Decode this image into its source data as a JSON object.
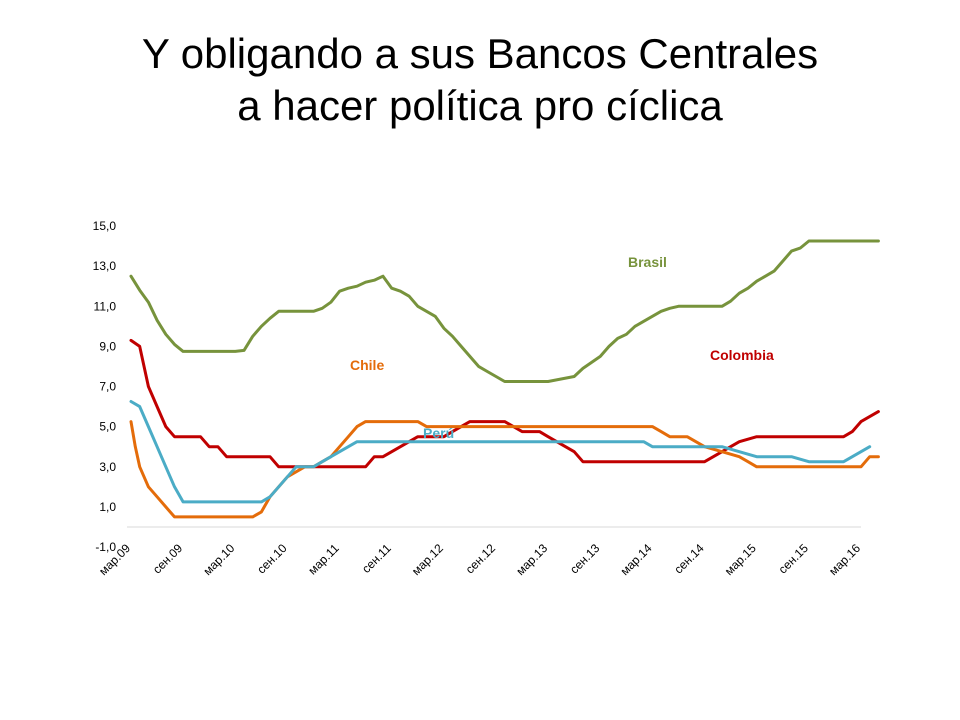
{
  "title": {
    "line1": "Y obligando a sus Bancos Centrales",
    "line2": "a hacer política pro cíclica"
  },
  "chart_data": {
    "type": "line",
    "title": "",
    "xlabel": "",
    "ylabel": "",
    "ylim": [
      -1,
      15
    ],
    "y_ticks": [
      "15,0",
      "13,0",
      "11,0",
      "9,0",
      "7,0",
      "5,0",
      "3,0",
      "1,0",
      "-1,0"
    ],
    "y_tick_values": [
      15,
      13,
      11,
      9,
      7,
      5,
      3,
      1,
      -1
    ],
    "x_ticks": [
      "мар.09",
      "сен.09",
      "мар.10",
      "сен.10",
      "мар.11",
      "сен.11",
      "мар.12",
      "сен.12",
      "мар.13",
      "сен.13",
      "мар.14",
      "сен.14",
      "мар.15",
      "сен.15",
      "мар.16"
    ],
    "x_start": "2009-03",
    "grid": false,
    "legend": "inline labels",
    "series": [
      {
        "name": "Brasil",
        "color": "#77933C",
        "x": [
          0,
          1,
          2,
          3,
          4,
          5,
          6,
          8,
          12,
          13,
          14,
          15,
          16,
          17,
          18,
          19,
          20,
          21,
          22,
          23,
          24,
          25,
          26,
          27,
          28,
          29,
          30,
          31,
          32,
          33,
          34,
          35,
          36,
          37,
          38,
          39,
          40,
          41,
          42,
          43,
          44,
          45,
          46,
          48,
          51,
          52,
          53,
          54,
          55,
          56,
          57,
          58,
          59,
          60,
          61,
          62,
          63,
          64,
          65,
          66,
          67,
          68,
          69,
          70,
          71,
          72,
          73,
          74,
          75,
          76,
          77,
          78,
          79,
          80,
          82,
          84,
          85,
          86
        ],
        "y": [
          12.5,
          11.8,
          11.2,
          10.3,
          9.6,
          9.1,
          8.75,
          8.75,
          8.75,
          8.8,
          9.5,
          10.0,
          10.4,
          10.75,
          10.75,
          10.75,
          10.75,
          10.75,
          10.9,
          11.2,
          11.75,
          11.9,
          12.0,
          12.2,
          12.3,
          12.5,
          11.9,
          11.75,
          11.5,
          11.0,
          10.75,
          10.5,
          9.9,
          9.5,
          9.0,
          8.5,
          8.0,
          7.75,
          7.5,
          7.25,
          7.25,
          7.25,
          7.25,
          7.25,
          7.5,
          7.9,
          8.2,
          8.5,
          9.0,
          9.4,
          9.6,
          10.0,
          10.25,
          10.5,
          10.75,
          10.9,
          11.0,
          11.0,
          11.0,
          11.0,
          11.0,
          11.0,
          11.25,
          11.65,
          11.9,
          12.25,
          12.5,
          12.75,
          13.25,
          13.75,
          13.9,
          14.25,
          14.25,
          14.25,
          14.25,
          14.25,
          14.25,
          14.25
        ]
      },
      {
        "name": "Colombia",
        "color": "#C00000",
        "x": [
          0,
          1,
          2,
          3,
          4,
          5,
          6,
          8,
          9,
          10,
          11,
          12,
          13,
          14,
          15,
          16,
          17,
          18,
          19,
          20,
          21,
          22,
          23,
          24,
          25,
          26,
          27,
          28,
          29,
          30,
          32,
          33,
          34,
          35,
          36,
          37,
          38,
          39,
          40,
          41,
          42,
          43,
          44,
          45,
          46,
          47,
          48,
          49,
          50,
          51,
          52,
          53,
          54,
          56,
          58,
          60,
          62,
          64,
          65,
          66,
          67,
          68,
          69,
          70,
          72,
          74,
          76,
          78,
          79,
          80,
          81,
          82,
          83,
          84,
          85,
          86
        ],
        "y": [
          9.3,
          9.0,
          7.0,
          6.0,
          5.0,
          4.5,
          4.5,
          4.5,
          4.0,
          4.0,
          3.5,
          3.5,
          3.5,
          3.5,
          3.5,
          3.5,
          3.0,
          3.0,
          3.0,
          3.0,
          3.0,
          3.0,
          3.0,
          3.0,
          3.0,
          3.0,
          3.0,
          3.5,
          3.5,
          3.75,
          4.25,
          4.5,
          4.5,
          4.5,
          4.5,
          4.75,
          5.0,
          5.25,
          5.25,
          5.25,
          5.25,
          5.25,
          5.0,
          4.75,
          4.75,
          4.75,
          4.5,
          4.25,
          4.0,
          3.75,
          3.25,
          3.25,
          3.25,
          3.25,
          3.25,
          3.25,
          3.25,
          3.25,
          3.25,
          3.25,
          3.5,
          3.75,
          4.0,
          4.25,
          4.5,
          4.5,
          4.5,
          4.5,
          4.5,
          4.5,
          4.5,
          4.5,
          4.75,
          5.25,
          5.5,
          5.75
        ]
      },
      {
        "name": "Chile",
        "color": "#E46C0A",
        "x": [
          0,
          0.5,
          1,
          2,
          3,
          4,
          5,
          6,
          7,
          9,
          12,
          14,
          15,
          16,
          17,
          18,
          19,
          20,
          21,
          22,
          23,
          24,
          25,
          26,
          27,
          28,
          29,
          30,
          32,
          33,
          34,
          35,
          36,
          38,
          40,
          42,
          44,
          46,
          48,
          50,
          52,
          54,
          56,
          58,
          60,
          61,
          62,
          63,
          64,
          65,
          66,
          68,
          70,
          71,
          72,
          74,
          76,
          78,
          80,
          82,
          84,
          85,
          86
        ],
        "y": [
          5.25,
          4.0,
          3.0,
          2.0,
          1.5,
          1.0,
          0.5,
          0.5,
          0.5,
          0.5,
          0.5,
          0.5,
          0.75,
          1.5,
          2.0,
          2.5,
          2.75,
          3.0,
          3.0,
          3.25,
          3.5,
          4.0,
          4.5,
          5.0,
          5.25,
          5.25,
          5.25,
          5.25,
          5.25,
          5.25,
          5.0,
          5.0,
          5.0,
          5.0,
          5.0,
          5.0,
          5.0,
          5.0,
          5.0,
          5.0,
          5.0,
          5.0,
          5.0,
          5.0,
          5.0,
          4.75,
          4.5,
          4.5,
          4.5,
          4.25,
          4.0,
          3.75,
          3.5,
          3.25,
          3.0,
          3.0,
          3.0,
          3.0,
          3.0,
          3.0,
          3.0,
          3.5,
          3.5
        ]
      },
      {
        "name": "Perú",
        "color": "#4BACC6",
        "x": [
          0,
          1,
          2,
          3,
          4,
          5,
          6,
          8,
          10,
          12,
          14,
          15,
          16,
          17,
          18,
          19,
          20,
          21,
          22,
          23,
          24,
          25,
          26,
          27,
          28,
          30,
          32,
          34,
          36,
          38,
          40,
          42,
          44,
          46,
          48,
          50,
          52,
          54,
          56,
          58,
          59,
          60,
          62,
          64,
          66,
          68,
          70,
          72,
          74,
          76,
          78,
          79,
          80,
          82,
          83,
          84,
          85
        ],
        "y": [
          6.25,
          6.0,
          5.0,
          4.0,
          3.0,
          2.0,
          1.25,
          1.25,
          1.25,
          1.25,
          1.25,
          1.25,
          1.5,
          2.0,
          2.5,
          3.0,
          3.0,
          3.0,
          3.25,
          3.5,
          3.75,
          4.0,
          4.25,
          4.25,
          4.25,
          4.25,
          4.25,
          4.25,
          4.25,
          4.25,
          4.25,
          4.25,
          4.25,
          4.25,
          4.25,
          4.25,
          4.25,
          4.25,
          4.25,
          4.25,
          4.25,
          4.0,
          4.0,
          4.0,
          4.0,
          4.0,
          3.75,
          3.5,
          3.5,
          3.5,
          3.25,
          3.25,
          3.25,
          3.25,
          3.5,
          3.75,
          4.0
        ]
      }
    ]
  }
}
